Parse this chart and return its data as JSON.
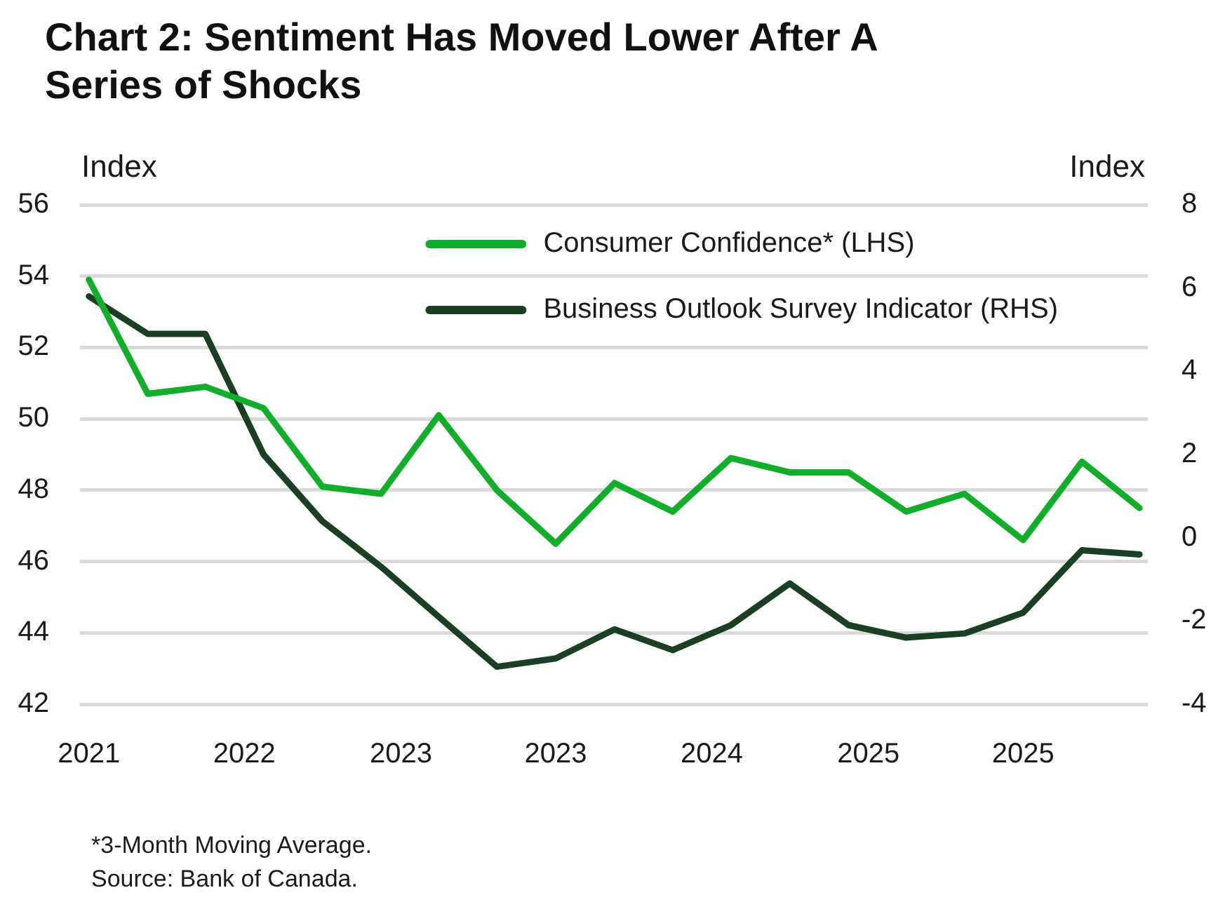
{
  "chart_data": {
    "type": "line",
    "title": "Chart 2: Sentiment Has Moved Lower After A Series of Shocks",
    "ylabel": "Index",
    "y2label": "Index",
    "x": [
      "2021-10",
      "2022-01",
      "2022-04",
      "2022-07",
      "2022-10",
      "2023-01",
      "2023-04",
      "2023-07",
      "2023-10",
      "2024-01",
      "2024-04",
      "2024-07",
      "2024-10",
      "2025-01",
      "2025-04",
      "2025-07",
      "2025-10",
      "2026-01",
      "2026-04"
    ],
    "series": [
      {
        "name": "Consumer Confidence* (LHS)",
        "color": "#12ad2b",
        "values": [
          53.9,
          50.7,
          50.9,
          50.3,
          48.1,
          47.9,
          50.1,
          48.0,
          46.5,
          48.2,
          47.4,
          48.9,
          48.5,
          48.5,
          47.4,
          47.9,
          46.6,
          48.8,
          47.5
        ]
      },
      {
        "name": "Business Outlook Survey Indicator (RHS)",
        "color": "#1a3f22",
        "axis": "y2",
        "values": [
          5.8,
          4.9,
          4.9,
          2.0,
          0.4,
          -0.7,
          -1.9,
          -3.1,
          -2.9,
          -2.2,
          -2.7,
          -2.1,
          -1.1,
          -2.1,
          -2.4,
          -2.3,
          -1.8,
          -0.3,
          -0.4
        ]
      }
    ],
    "xlim": [
      "2021-09-17",
      "2026-04-14"
    ],
    "xticks": [
      {
        "value": "2021-10",
        "label": "2021"
      },
      {
        "value": "2022-06",
        "label": "2022"
      },
      {
        "value": "2023-02",
        "label": "2023"
      },
      {
        "value": "2023-10",
        "label": "2023"
      },
      {
        "value": "2024-06",
        "label": "2024"
      },
      {
        "value": "2025-02",
        "label": "2025"
      },
      {
        "value": "2025-10",
        "label": "2025"
      }
    ],
    "ylim": [
      42,
      56
    ],
    "yticks": [
      42,
      44,
      46,
      48,
      50,
      52,
      54,
      56
    ],
    "y2lim": [
      -4,
      8
    ],
    "y2ticks": [
      -4,
      -2,
      0,
      2,
      4,
      6,
      8
    ],
    "grid": "y",
    "legend": "top right",
    "marker": "none",
    "line_style": "solid",
    "annotations": [
      "*3-Month Moving Average.",
      "Source: Bank of Canada."
    ]
  }
}
